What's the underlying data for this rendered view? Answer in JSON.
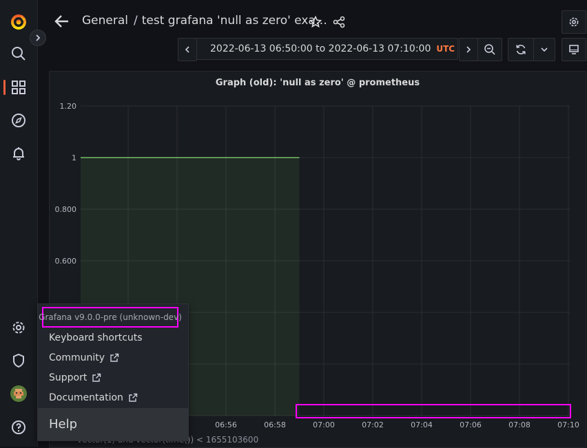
{
  "sidebar": {
    "items": [
      {
        "name": "grafana-logo-icon"
      },
      {
        "name": "search-icon"
      },
      {
        "name": "dashboards-icon"
      },
      {
        "name": "explore-icon"
      },
      {
        "name": "alerting-bell-icon"
      },
      {
        "name": "configuration-gear-icon"
      },
      {
        "name": "server-admin-shield-icon"
      },
      {
        "name": "user-avatar"
      },
      {
        "name": "help-icon"
      }
    ],
    "accent": "#f55f3e"
  },
  "header": {
    "breadcrumb_folder": "General",
    "breadcrumb_separator": "/",
    "breadcrumb_dashboard": "test grafana 'null as zero' exa…"
  },
  "toolbar": {
    "time_from": "2022-06-13 06:50:00",
    "time_to_word": "to",
    "time_to": "2022-06-13 07:10:00",
    "timezone": "UTC"
  },
  "panel": {
    "title": "Graph (old): 'null as zero' @ prometheus",
    "legend": "vector(1) and vector(time()) < 1655103600"
  },
  "chart_data": {
    "type": "line",
    "title": "Graph (old): 'null as zero' @ prometheus",
    "x_ticks": [
      "06:56",
      "06:58",
      "07:00",
      "07:02",
      "07:04",
      "07:06",
      "07:08",
      "07:10"
    ],
    "y_ticks": [
      "1.20",
      "1",
      "0.800",
      "0.600"
    ],
    "ylim": [
      0,
      1.2
    ],
    "series": [
      {
        "name": "vector(1) and vector(time()) < 1655103600",
        "color": "#73bf69",
        "x": [
          "06:50",
          "06:59"
        ],
        "values": [
          1,
          1
        ]
      }
    ]
  },
  "help_menu": {
    "version": "Grafana v9.0.0-pre (unknown-dev)",
    "items": [
      "Keyboard shortcuts",
      "Community",
      "Support",
      "Documentation"
    ],
    "footer": "Help"
  }
}
